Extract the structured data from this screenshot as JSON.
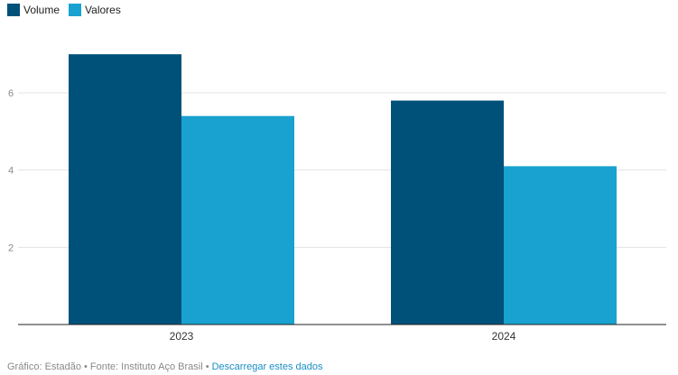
{
  "legend": [
    {
      "label": "Volume",
      "color": "#00517a"
    },
    {
      "label": "Valores",
      "color": "#19a2d0"
    }
  ],
  "chart_data": {
    "type": "bar",
    "categories": [
      "2023",
      "2024"
    ],
    "series": [
      {
        "name": "Volume",
        "values": [
          7.0,
          5.8
        ],
        "color": "#00517a"
      },
      {
        "name": "Valores",
        "values": [
          5.4,
          4.1
        ],
        "color": "#19a2d0"
      }
    ],
    "ylim": [
      0,
      7.5
    ],
    "yticks": [
      2,
      4,
      6
    ],
    "grid": true,
    "legend_position": "top-left"
  },
  "footer": {
    "credit": "Gráfico: Estadão",
    "separator": " • ",
    "source": "Fonte: Instituto Aço Brasil",
    "download_label": "Descarregar estes dados"
  }
}
